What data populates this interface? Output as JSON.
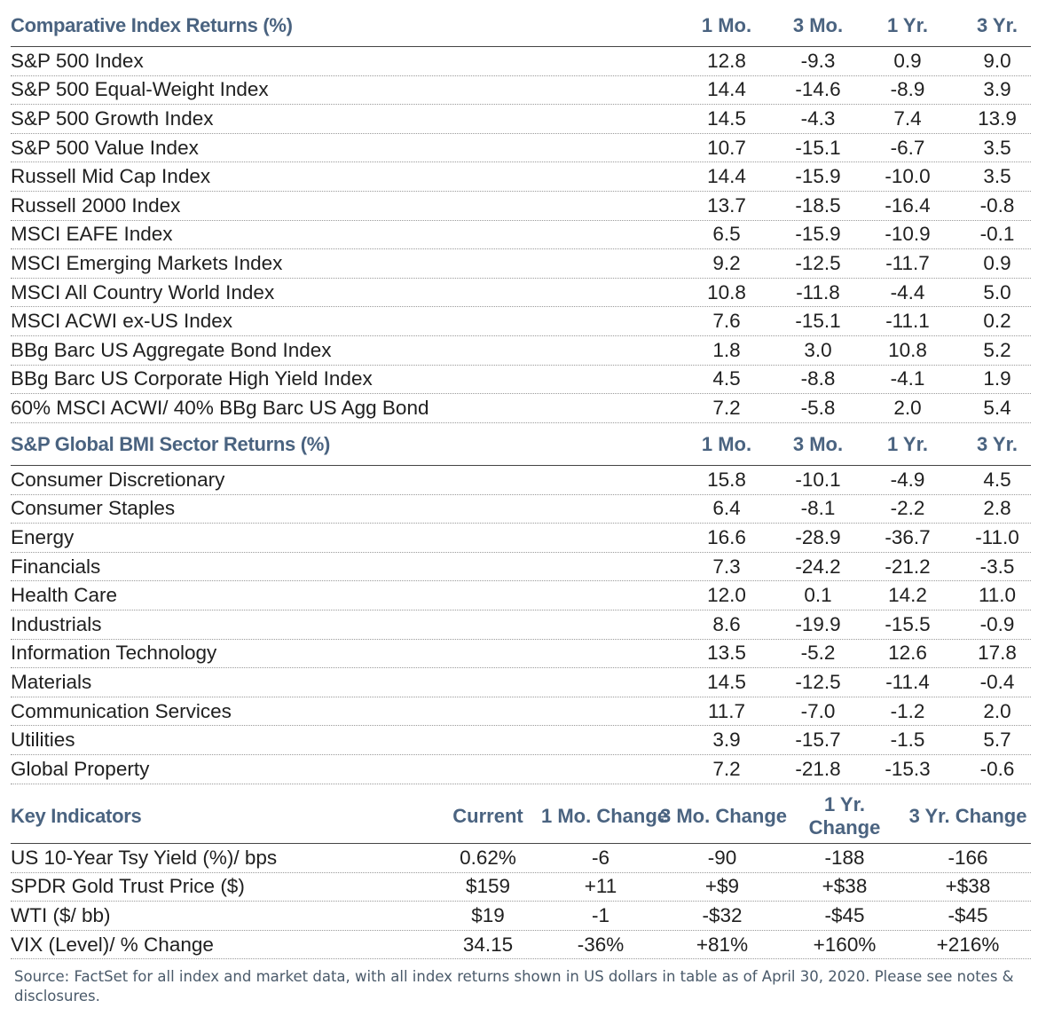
{
  "index_returns": {
    "title": "Comparative Index Returns (%)",
    "columns": [
      "1 Mo.",
      "3 Mo.",
      "1 Yr.",
      "3 Yr."
    ],
    "rows": [
      {
        "name": "S&P 500 Index",
        "values": [
          "12.8",
          "-9.3",
          "0.9",
          "9.0"
        ]
      },
      {
        "name": "S&P 500 Equal-Weight Index",
        "values": [
          "14.4",
          "-14.6",
          "-8.9",
          "3.9"
        ]
      },
      {
        "name": "S&P 500 Growth Index",
        "values": [
          "14.5",
          "-4.3",
          "7.4",
          "13.9"
        ]
      },
      {
        "name": "S&P 500 Value Index",
        "values": [
          "10.7",
          "-15.1",
          "-6.7",
          "3.5"
        ]
      },
      {
        "name": "Russell Mid Cap Index",
        "values": [
          "14.4",
          "-15.9",
          "-10.0",
          "3.5"
        ]
      },
      {
        "name": "Russell 2000 Index",
        "values": [
          "13.7",
          "-18.5",
          "-16.4",
          "-0.8"
        ]
      },
      {
        "name": "MSCI EAFE Index",
        "values": [
          "6.5",
          "-15.9",
          "-10.9",
          "-0.1"
        ]
      },
      {
        "name": "MSCI Emerging Markets Index",
        "values": [
          "9.2",
          "-12.5",
          "-11.7",
          "0.9"
        ]
      },
      {
        "name": "MSCI All Country World Index",
        "values": [
          "10.8",
          "-11.8",
          "-4.4",
          "5.0"
        ]
      },
      {
        "name": "MSCI ACWI ex-US Index",
        "values": [
          "7.6",
          "-15.1",
          "-11.1",
          "0.2"
        ]
      },
      {
        "name": "BBg Barc US Aggregate Bond Index",
        "values": [
          "1.8",
          "3.0",
          "10.8",
          "5.2"
        ]
      },
      {
        "name": "BBg Barc US Corporate High Yield Index",
        "values": [
          "4.5",
          "-8.8",
          "-4.1",
          "1.9"
        ]
      },
      {
        "name": "60% MSCI ACWI/ 40% BBg Barc US Agg Bond",
        "values": [
          "7.2",
          "-5.8",
          "2.0",
          "5.4"
        ]
      }
    ]
  },
  "sector_returns": {
    "title": "S&P Global BMI Sector Returns (%)",
    "columns": [
      "1 Mo.",
      "3 Mo.",
      "1 Yr.",
      "3 Yr."
    ],
    "rows": [
      {
        "name": "Consumer Discretionary",
        "values": [
          "15.8",
          "-10.1",
          "-4.9",
          "4.5"
        ]
      },
      {
        "name": "Consumer Staples",
        "values": [
          "6.4",
          "-8.1",
          "-2.2",
          "2.8"
        ]
      },
      {
        "name": "Energy",
        "values": [
          "16.6",
          "-28.9",
          "-36.7",
          "-11.0"
        ]
      },
      {
        "name": "Financials",
        "values": [
          "7.3",
          "-24.2",
          "-21.2",
          "-3.5"
        ]
      },
      {
        "name": "Health Care",
        "values": [
          "12.0",
          "0.1",
          "14.2",
          "11.0"
        ]
      },
      {
        "name": "Industrials",
        "values": [
          "8.6",
          "-19.9",
          "-15.5",
          "-0.9"
        ]
      },
      {
        "name": "Information Technology",
        "values": [
          "13.5",
          "-5.2",
          "12.6",
          "17.8"
        ]
      },
      {
        "name": "Materials",
        "values": [
          "14.5",
          "-12.5",
          "-11.4",
          "-0.4"
        ]
      },
      {
        "name": "Communication Services",
        "values": [
          "11.7",
          "-7.0",
          "-1.2",
          "2.0"
        ]
      },
      {
        "name": "Utilities",
        "values": [
          "3.9",
          "-15.7",
          "-1.5",
          "5.7"
        ]
      },
      {
        "name": "Global Property",
        "values": [
          "7.2",
          "-21.8",
          "-15.3",
          "-0.6"
        ]
      }
    ]
  },
  "key_indicators": {
    "title": "Key Indicators",
    "columns": [
      "Current",
      "1 Mo. Change",
      "3 Mo. Change",
      "1 Yr. Change",
      "3 Yr. Change"
    ],
    "rows": [
      {
        "name": "US 10-Year Tsy Yield (%)/ bps",
        "values": [
          "0.62%",
          "-6",
          "-90",
          "-188",
          "-166"
        ]
      },
      {
        "name": "SPDR Gold Trust Price ($)",
        "values": [
          "$159",
          "+11",
          "+$9",
          "+$38",
          "+$38"
        ]
      },
      {
        "name": "WTI ($/ bb)",
        "values": [
          "$19",
          "-1",
          "-$32",
          "-$45",
          "-$45"
        ]
      },
      {
        "name": "VIX (Level)/ % Change",
        "values": [
          "34.15",
          "-36%",
          "+81%",
          "+160%",
          "+216%"
        ]
      }
    ]
  },
  "source_note": "Source: FactSet for all index and market data, with all index returns shown in US dollars in table as of April 30, 2020. Please see notes & disclosures."
}
